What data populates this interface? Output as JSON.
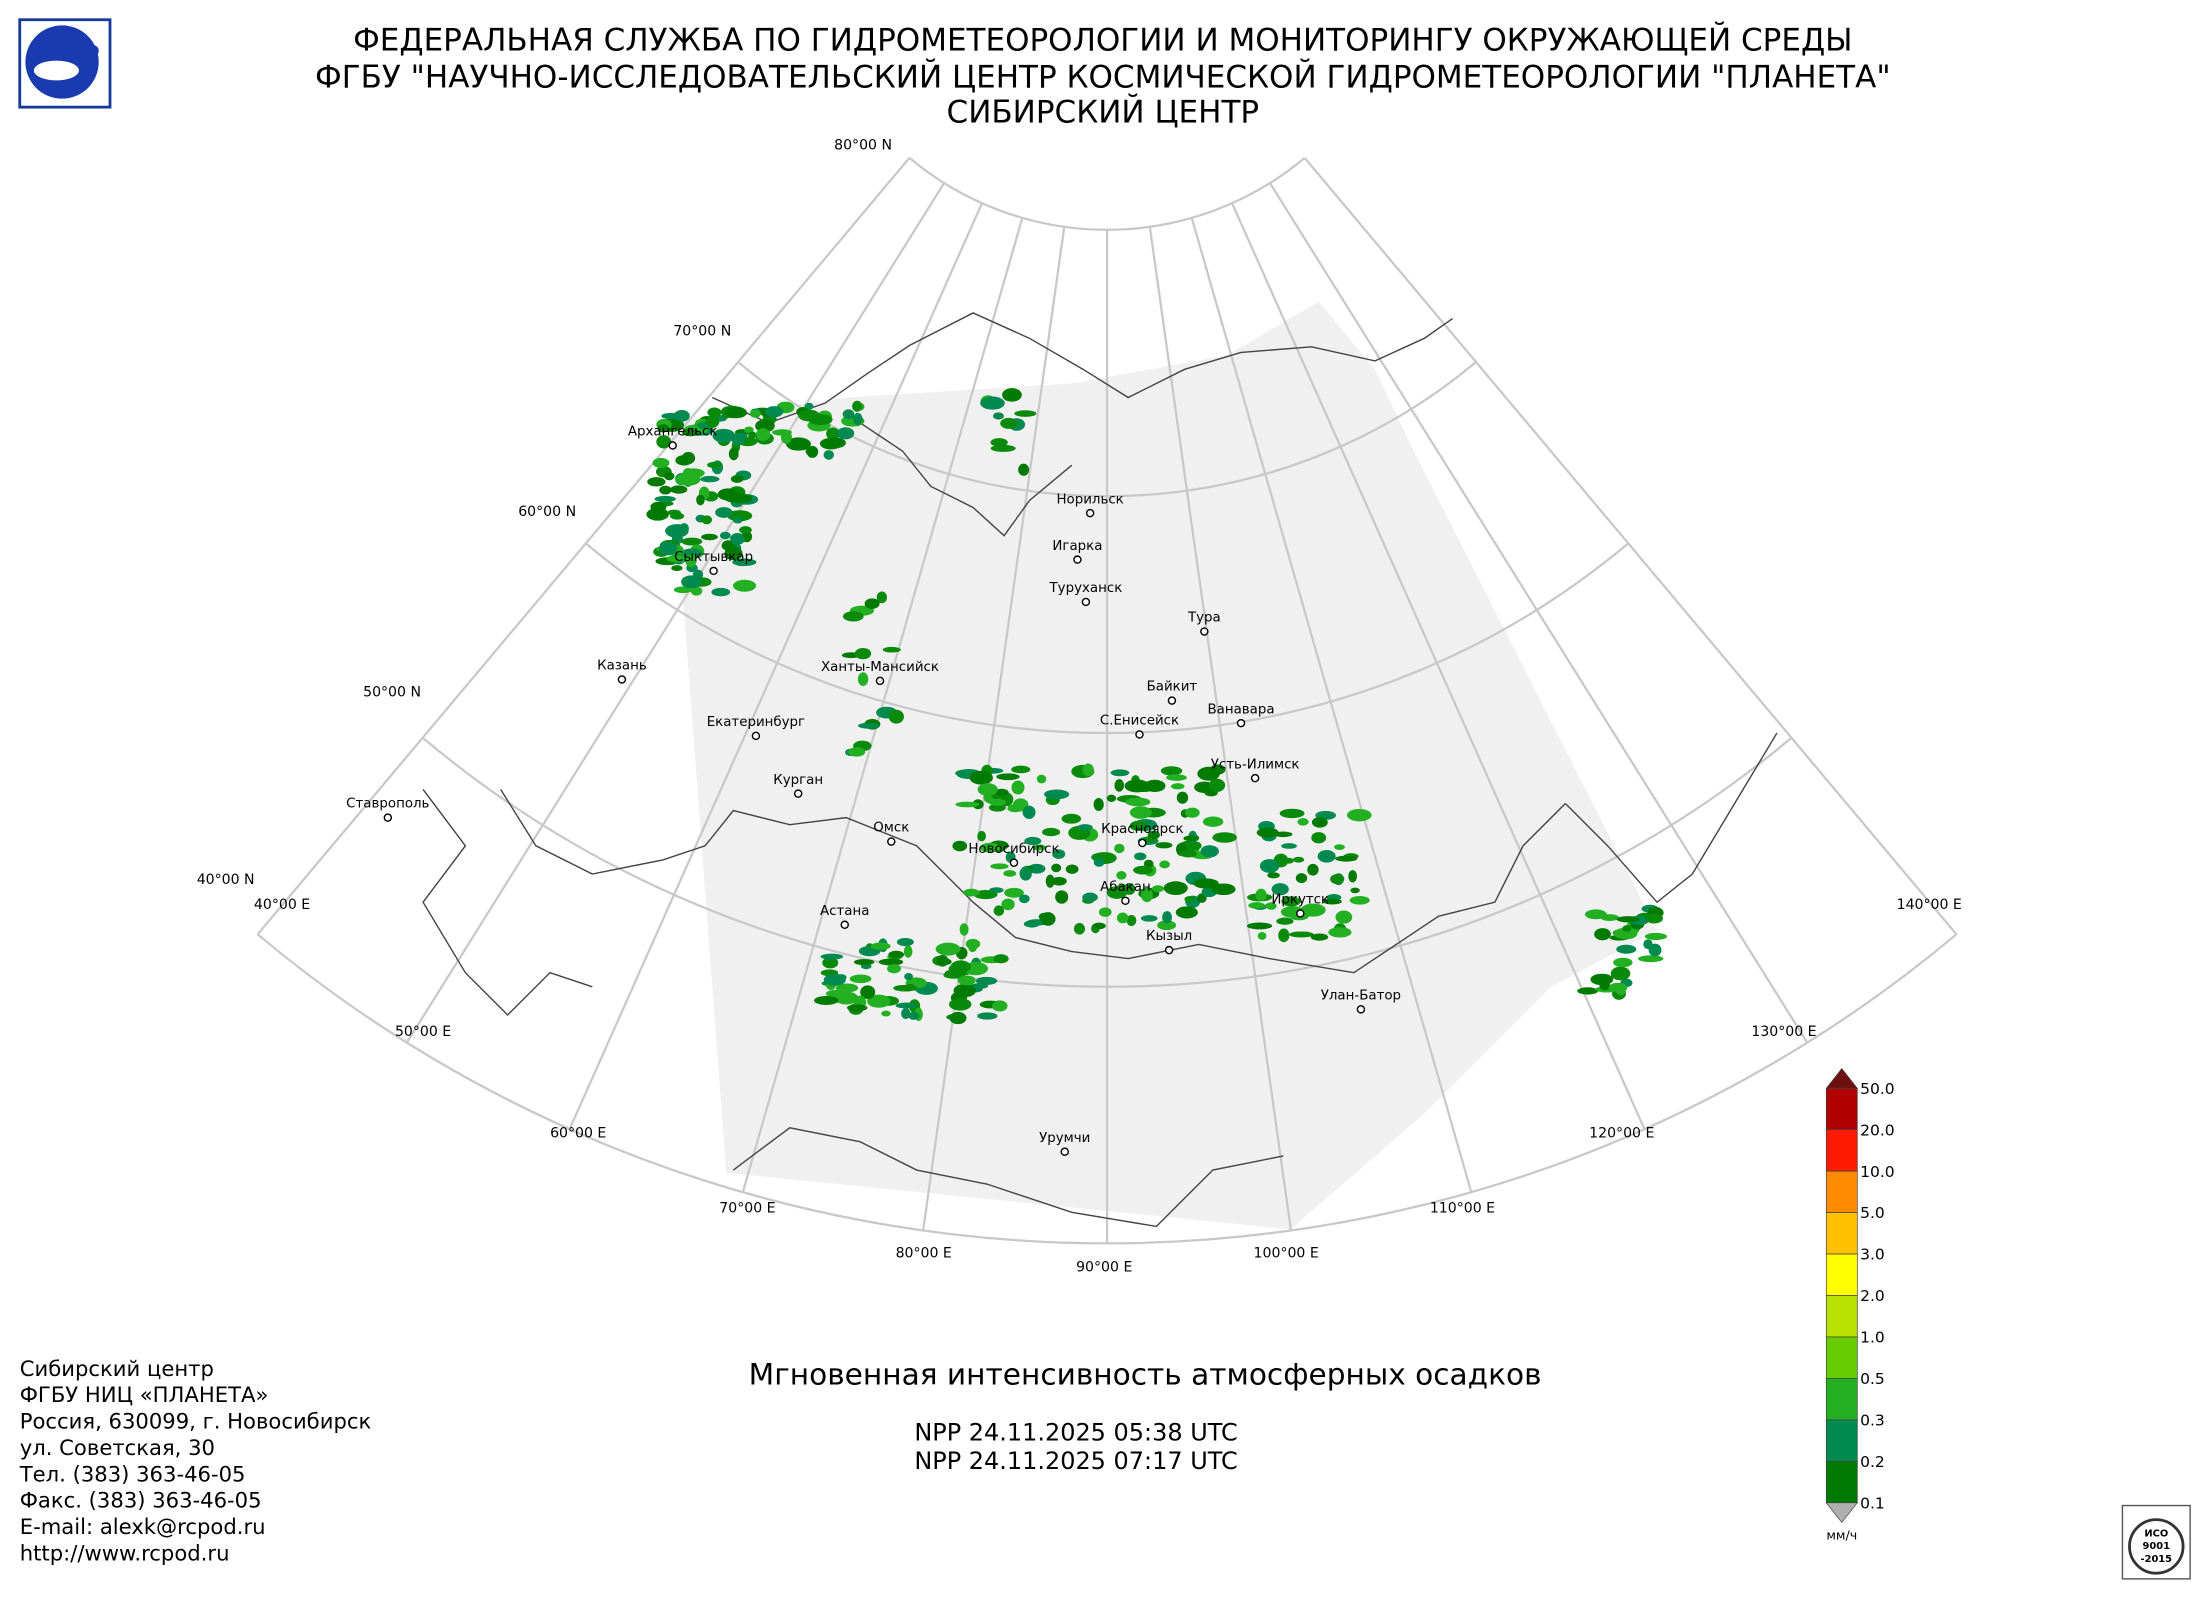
{
  "header": {
    "lines": [
      "ФЕДЕРАЛЬНАЯ СЛУЖБА ПО ГИДРОМЕТЕОРОЛОГИИ И МОНИТОРИНГУ ОКРУЖАЮЩЕЙ СРЕДЫ",
      "ФГБУ \"НАУЧНО-ИССЛЕДОВАТЕЛЬСКИЙ ЦЕНТР КОСМИЧЕСКОЙ ГИДРОМЕТЕОРОЛОГИИ \"ПЛАНЕТА\"",
      "СИБИРСКИЙ ЦЕНТР"
    ]
  },
  "map": {
    "parallel_labels": [
      "80°00 N",
      "70°00 N",
      "60°00 N",
      "50°00 N",
      "40°00 N"
    ],
    "meridian_labels": [
      "40°00 E",
      "50°00 E",
      "60°00 E",
      "70°00 E",
      "80°00 E",
      "90°00 E",
      "100°00 E",
      "110°00 E",
      "120°00 E",
      "130°00 E",
      "140°00 E"
    ],
    "cities": [
      "Архангельск",
      "Сыктывкар",
      "Казань",
      "Ставрополь",
      "Екатеринбург",
      "Курган",
      "Ханты-Мансийск",
      "Омск",
      "Новосибирск",
      "Астана",
      "Норильск",
      "Игарка",
      "Туруханск",
      "Тура",
      "Байкит",
      "Ванавара",
      "С.Енисейск",
      "Усть-Илимск",
      "Красноярск",
      "Абакан",
      "Иркутск",
      "Кызыл",
      "Улан-Батор",
      "Урумчи"
    ]
  },
  "product": {
    "title": "Мгновенная интенсивность атмосферных осадков",
    "passes": [
      "NPP 24.11.2025  05:38 UTC",
      "NPP 24.11.2025  07:17 UTC"
    ]
  },
  "legend": {
    "labels": [
      "50.0",
      "20.0",
      "10.0",
      "5.0",
      "3.0",
      "2.0",
      "1.0",
      "0.5",
      "0.3",
      "0.2",
      "0.1"
    ],
    "colors": [
      "#b20000",
      "#ff1a00",
      "#ff8c00",
      "#ffc000",
      "#ffff00",
      "#b8e000",
      "#66cc00",
      "#22b022",
      "#008a50",
      "#007a00"
    ],
    "over_color": "#6e1010",
    "under_color": "#b0b0b0",
    "unit": "мм/ч"
  },
  "contacts": {
    "lines": [
      "Сибирский центр",
      "ФГБУ НИЦ «ПЛАНЕТА»",
      "Россия, 630099, г. Новосибирск",
      "ул. Советская, 30",
      "Тел. (383) 363-46-05",
      "Факс. (383) 363-46-05",
      "E-mail: alexk@rcpod.ru",
      "http://www.rcpod.ru"
    ]
  },
  "badge": {
    "lines": [
      "ИСО",
      "9001",
      "-2015"
    ]
  }
}
